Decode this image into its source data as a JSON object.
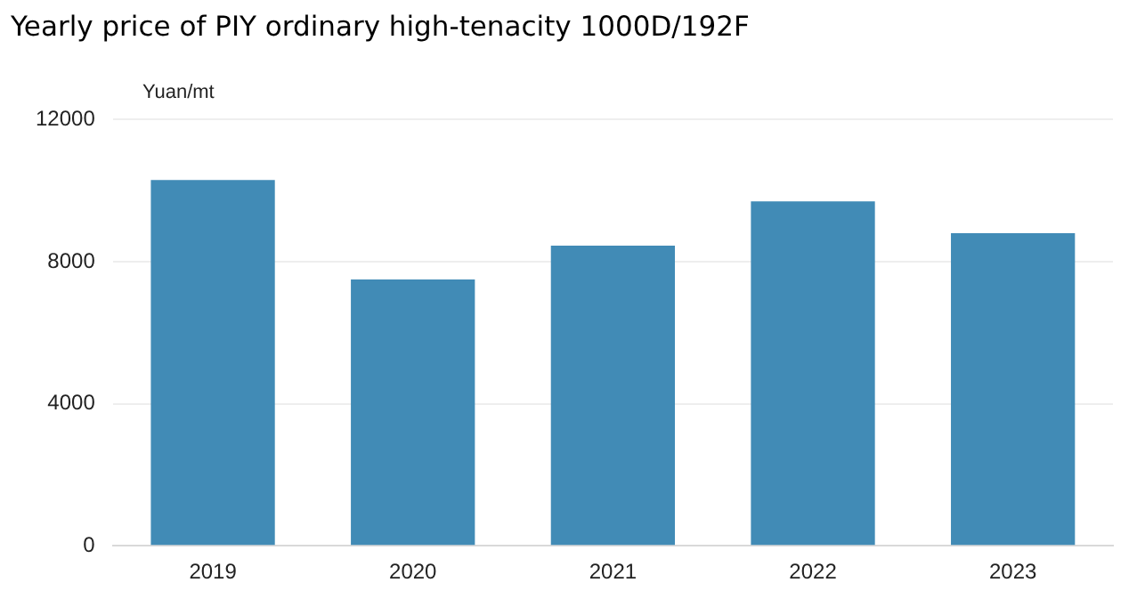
{
  "chart_data": {
    "type": "bar",
    "title": "Yearly price of PIY ordinary high-tenacity 1000D/192F",
    "ylabel": "Yuan/mt",
    "categories": [
      "2019",
      "2020",
      "2021",
      "2022",
      "2023"
    ],
    "values": [
      10300,
      7500,
      8450,
      9700,
      8800
    ],
    "color": "#418bb6",
    "ylim": [
      0,
      12000
    ],
    "yticks": [
      0,
      4000,
      8000,
      12000
    ],
    "grid": "y",
    "legend": false
  }
}
